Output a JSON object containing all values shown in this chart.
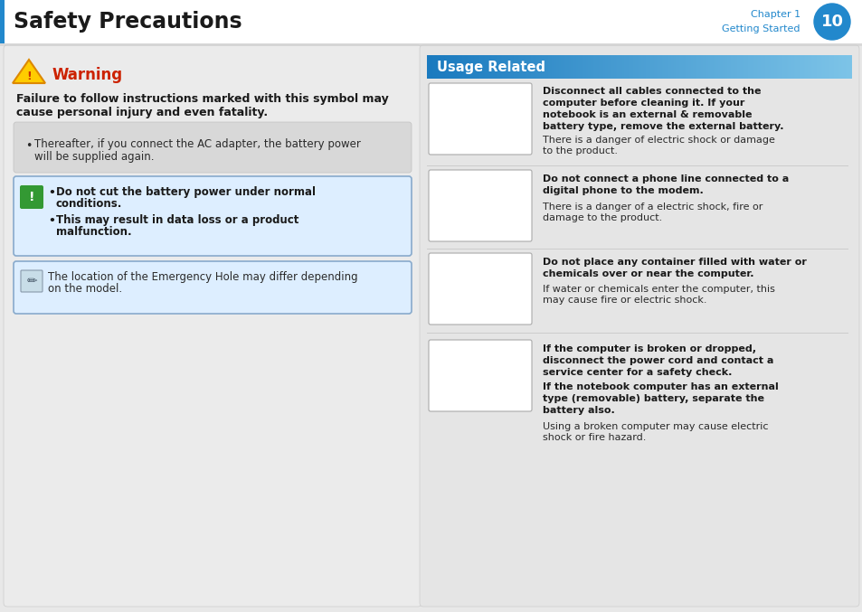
{
  "title": "Safety Precautions",
  "chapter": "Chapter 1",
  "chapter_sub": "Getting Started",
  "chapter_num": "10",
  "warning_title": "Warning",
  "warning_intro_line1": "Failure to follow instructions marked with this symbol may",
  "warning_intro_line2": "cause personal injury and even fatality.",
  "bullet1_line1": "Thereafter, if you connect the AC adapter, the battery power",
  "bullet1_line2": "will be supplied again.",
  "caution_b1_line1": "Do not cut the battery power under normal",
  "caution_b1_line2": "conditions.",
  "caution_b2_line1": "This may result in data loss or a product",
  "caution_b2_line2": "malfunction.",
  "note_line1": "The location of the Emergency Hole may differ depending",
  "note_line2": "on the model.",
  "usage_title": "Usage Related",
  "u1_b1": "Disconnect all cables connected to the",
  "u1_b2": "computer before cleaning it. If your",
  "u1_b3": "notebook is an external & removable",
  "u1_b4": "battery type, remove the external battery.",
  "u1_n1": "There is a danger of electric shock or damage",
  "u1_n2": "to the product.",
  "u2_b1": "Do not connect a phone line connected to a",
  "u2_b2": "digital phone to the modem.",
  "u2_n1": "There is a danger of a electric shock, fire or",
  "u2_n2": "damage to the product.",
  "u3_b1": "Do not place any container filled with water or",
  "u3_b2": "chemicals over or near the computer.",
  "u3_n1": "If water or chemicals enter the computer, this",
  "u3_n2": "may cause fire or electric shock.",
  "u4_b1": "If the computer is broken or dropped,",
  "u4_b2": "disconnect the power cord and contact a",
  "u4_b3": "service center for a safety check.",
  "u4_b4": "If the notebook computer has an external",
  "u4_b5": "type (removable) battery, separate the",
  "u4_b6": "battery also.",
  "u4_n1": "Using a broken computer may cause electric",
  "u4_n2": "shock or fire hazard.",
  "bg_color": "#e8e8e8",
  "header_bg": "#ffffff",
  "left_panel_bg": "#ebebeb",
  "right_panel_bg": "#e5e5e5",
  "caution_box_bg": "#ddeeff",
  "caution_box_border": "#88aacc",
  "note_box_bg": "#ddeeff",
  "note_box_border": "#88aacc",
  "gray_box_bg": "#d8d8d8",
  "gray_box_border": "#c0c0c0",
  "usage_header_dark": "#1a7abf",
  "usage_header_light": "#7dc4e8",
  "title_color": "#1a1a1a",
  "warning_color": "#cc2200",
  "text_color": "#2a2a2a",
  "chapter_color": "#2288cc",
  "bold_text_color": "#1a1a1a"
}
